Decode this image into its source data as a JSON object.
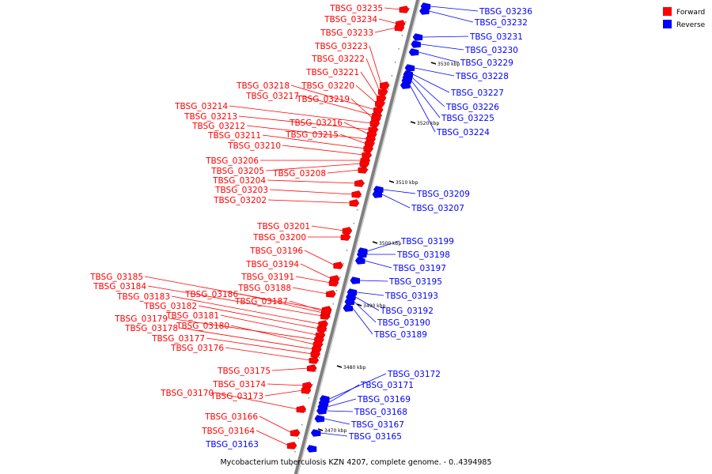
{
  "caption": "Mycobacterium tuberculosis KZN 4207, complete genome. - 0..4394985",
  "legend": [
    {
      "label": "Forward",
      "color": "#ff0000"
    },
    {
      "label": "Reverse",
      "color": "#0000ff"
    }
  ],
  "colors": {
    "forward": "#ff0000",
    "reverse": "#0000ff",
    "backbone": "#808080"
  },
  "ticks": [
    "3470 kbp",
    "3480 kbp",
    "3490 kbp",
    "3500 kbp",
    "3510 kbp",
    "3520 kbp",
    "3530 kbp"
  ],
  "forward_genes": [
    "TBSG_03235",
    "TBSG_03234",
    "TBSG_03233",
    "TBSG_03223",
    "TBSG_03222",
    "TBSG_03221",
    "TBSG_03220",
    "TBSG_03218",
    "TBSG_03217",
    "TBSG_03219",
    "TBSG_03214",
    "TBSG_03213",
    "TBSG_03216",
    "TBSG_03212",
    "TBSG_03215",
    "TBSG_03211",
    "TBSG_03210",
    "TBSG_03206",
    "TBSG_03205",
    "TBSG_03208",
    "TBSG_03204",
    "TBSG_03203",
    "TBSG_03202",
    "TBSG_03201",
    "TBSG_03200",
    "TBSG_03196",
    "TBSG_03194",
    "TBSG_03185",
    "TBSG_03191",
    "TBSG_03184",
    "TBSG_03188",
    "TBSG_03183",
    "TBSG_03186",
    "TBSG_03187",
    "TBSG_03182",
    "TBSG_03181",
    "TBSG_03179",
    "TBSG_03180",
    "TBSG_03178",
    "TBSG_03177",
    "TBSG_03176",
    "TBSG_03175",
    "TBSG_03174",
    "TBSG_03173",
    "TBSG_03170",
    "TBSG_03166",
    "TBSG_03164"
  ],
  "reverse_genes": [
    "TBSG_03236",
    "TBSG_03232",
    "TBSG_03231",
    "TBSG_03230",
    "TBSG_03229",
    "TBSG_03228",
    "TBSG_03227",
    "TBSG_03226",
    "TBSG_03225",
    "TBSG_03224",
    "TBSG_03209",
    "TBSG_03207",
    "TBSG_03199",
    "TBSG_03198",
    "TBSG_03197",
    "TBSG_03195",
    "TBSG_03193",
    "TBSG_03192",
    "TBSG_03190",
    "TBSG_03189",
    "TBSG_03172",
    "TBSG_03171",
    "TBSG_03169",
    "TBSG_03168",
    "TBSG_03167",
    "TBSG_03165",
    "TBSG_03163"
  ]
}
